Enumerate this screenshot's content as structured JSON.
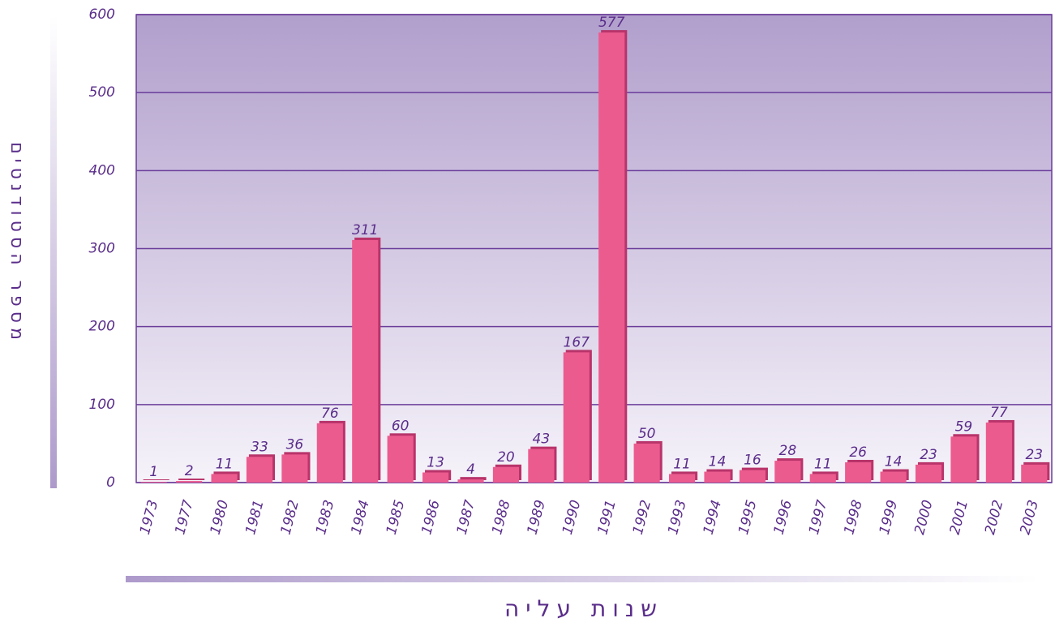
{
  "chart_data": {
    "type": "bar",
    "x_label": "שנות עליה",
    "y_label": "מספר הסטודנטים",
    "categories": [
      "1973",
      "1977",
      "1980",
      "1981",
      "1982",
      "1983",
      "1984",
      "1985",
      "1986",
      "1987",
      "1988",
      "1989",
      "1990",
      "1991",
      "1992",
      "1993",
      "1994",
      "1995",
      "1996",
      "1997",
      "1998",
      "1999",
      "2000",
      "2001",
      "2002",
      "2003"
    ],
    "values": [
      1,
      2,
      11,
      33,
      36,
      76,
      311,
      60,
      13,
      4,
      20,
      43,
      167,
      577,
      50,
      11,
      14,
      16,
      28,
      11,
      26,
      14,
      23,
      59,
      77,
      23
    ],
    "color": "#ec5b8e",
    "ylim": [
      0,
      600
    ],
    "yticks": [
      0,
      100,
      200,
      300,
      400,
      500,
      600
    ],
    "grid": true
  }
}
